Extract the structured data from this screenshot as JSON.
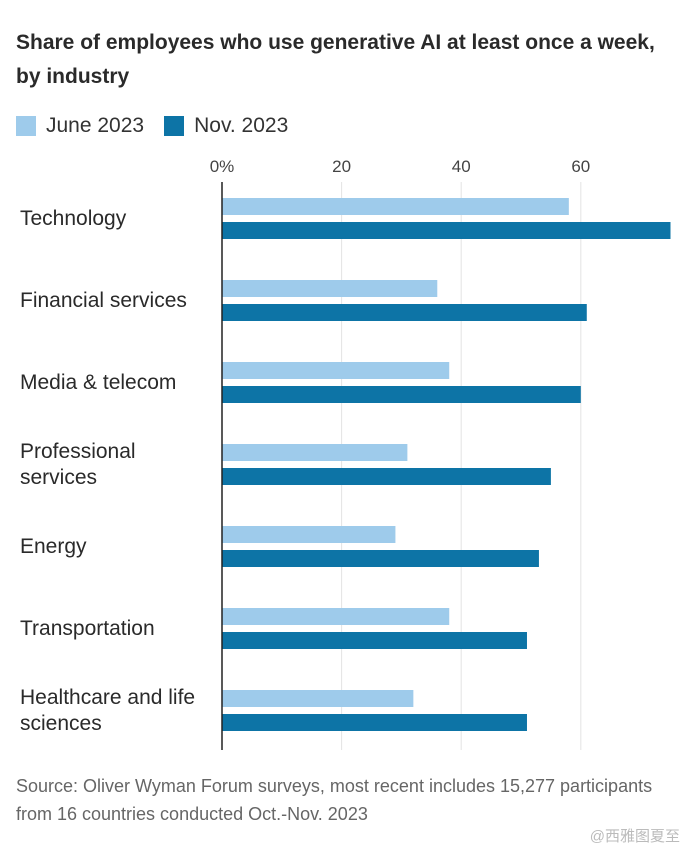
{
  "chart_data": {
    "type": "bar",
    "orientation": "horizontal",
    "title": "Share of employees who use generative AI at least once a week, by industry",
    "categories": [
      "Technology",
      "Financial services",
      "Media & telecom",
      "Professional services",
      "Energy",
      "Transportation",
      "Healthcare and life sciences"
    ],
    "series": [
      {
        "name": "June 2023",
        "color": "#9ecbeb",
        "values": [
          58,
          36,
          38,
          31,
          29,
          38,
          32
        ]
      },
      {
        "name": "Nov. 2023",
        "color": "#0d74a6",
        "values": [
          75,
          61,
          60,
          55,
          53,
          51,
          51
        ]
      }
    ],
    "xticks": [
      {
        "value": 0,
        "label": "0%"
      },
      {
        "value": 20,
        "label": "20"
      },
      {
        "value": 40,
        "label": "40"
      },
      {
        "value": 60,
        "label": "60"
      }
    ],
    "xlim": [
      0,
      75
    ],
    "grid": true,
    "legend_position": "top-left"
  },
  "source": "Source: Oliver Wyman Forum surveys, most recent includes 15,277 participants from 16 countries conducted Oct.-Nov. 2023",
  "watermark": "@西雅图夏至"
}
